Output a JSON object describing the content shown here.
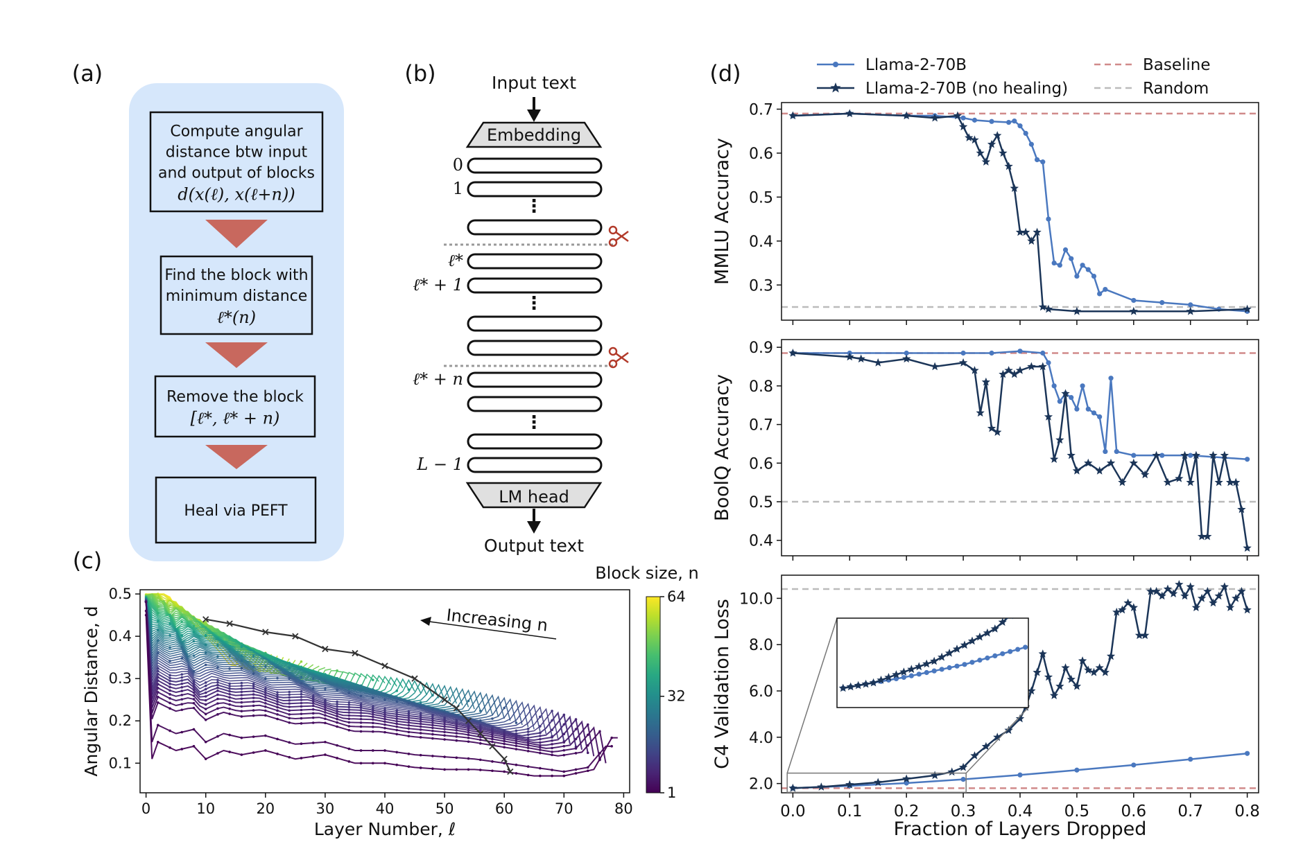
{
  "panels": {
    "a": {
      "label": "(a)",
      "steps": [
        {
          "lines": [
            "Compute angular",
            "distance btw input",
            "and output of blocks"
          ],
          "math": "d(x(ℓ), x(ℓ+n))"
        },
        {
          "lines": [
            "Find the block with",
            "minimum distance"
          ],
          "math": "ℓ*(n)"
        },
        {
          "lines": [
            "Remove the block"
          ],
          "math": "[ℓ*, ℓ* + n)"
        },
        {
          "lines": [
            "Heal via PEFT"
          ],
          "math": ""
        }
      ],
      "colors": {
        "panel": "#d6e7fb",
        "arrow": "#c8685e"
      }
    },
    "b": {
      "label": "(b)",
      "input": "Input text",
      "output": "Output text",
      "embedding": "Embedding",
      "head": "LM head",
      "layer_labels": [
        "0",
        "1",
        "ℓ*",
        "ℓ* + 1",
        "ℓ* + n",
        "L − 1"
      ],
      "ellipsis": "⋮",
      "scissors_icon": "scissors-icon",
      "colors": {
        "scissors": "#b23a2a",
        "cut": "#999999"
      }
    },
    "c": {
      "label": "(c)"
    },
    "d": {
      "label": "(d)"
    }
  },
  "chart_data": [
    {
      "id": "angular-distance",
      "type": "line",
      "xlabel": "Layer Number, ℓ",
      "ylabel": "Angular Distance, d",
      "xlim": [
        -1,
        81
      ],
      "ylim": [
        0.03,
        0.51
      ],
      "xticks": [
        0,
        10,
        20,
        30,
        40,
        50,
        60,
        70,
        80
      ],
      "yticks": [
        0.1,
        0.2,
        0.3,
        0.4,
        0.5
      ],
      "grid": false,
      "annotation": "Increasing n",
      "colorbar": {
        "label": "Block size, n",
        "min": 1,
        "max": 64,
        "ticks": [
          1,
          32,
          64
        ],
        "colormap": "viridis"
      },
      "n_layers": 80,
      "series": [
        {
          "n": 1,
          "x": [
            0,
            1,
            2,
            5,
            8,
            10,
            13,
            16,
            20,
            25,
            30,
            35,
            40,
            45,
            50,
            55,
            60,
            65,
            70,
            75,
            78
          ],
          "y": [
            0.45,
            0.11,
            0.15,
            0.13,
            0.14,
            0.11,
            0.13,
            0.12,
            0.13,
            0.11,
            0.12,
            0.1,
            0.1,
            0.09,
            0.085,
            0.085,
            0.08,
            0.07,
            0.07,
            0.085,
            0.16
          ]
        },
        {
          "n": 2,
          "x": [
            0,
            1,
            2,
            5,
            8,
            10,
            13,
            16,
            20,
            25,
            30,
            35,
            40,
            45,
            50,
            55,
            60,
            65,
            70,
            74,
            77
          ],
          "y": [
            0.46,
            0.15,
            0.19,
            0.17,
            0.18,
            0.15,
            0.17,
            0.16,
            0.165,
            0.145,
            0.15,
            0.13,
            0.13,
            0.12,
            0.115,
            0.11,
            0.1,
            0.09,
            0.08,
            0.09,
            0.14
          ]
        }
      ],
      "series_rule": "n = 1 to 64; each curve starts at layer 0 and ends at layer 80 − n",
      "min_path": {
        "x": [
          10,
          14,
          20,
          25,
          30,
          35,
          40,
          45,
          50,
          52,
          54,
          56,
          58,
          60,
          61
        ],
        "y": [
          0.44,
          0.43,
          0.41,
          0.4,
          0.37,
          0.36,
          0.33,
          0.3,
          0.25,
          0.23,
          0.2,
          0.17,
          0.14,
          0.11,
          0.08
        ]
      }
    },
    {
      "id": "mmlu",
      "type": "line",
      "ylabel": "MMLU Accuracy",
      "xlim": [
        -0.02,
        0.82
      ],
      "ylim": [
        0.22,
        0.715
      ],
      "xticks": [
        0.0,
        0.1,
        0.2,
        0.3,
        0.4,
        0.5,
        0.6,
        0.7,
        0.8
      ],
      "yticks": [
        "0.3",
        "0.4",
        "0.5",
        "0.6",
        "0.7"
      ],
      "ytick_values": [
        0.3,
        0.4,
        0.5,
        0.6,
        0.7
      ],
      "baseline": 0.69,
      "random": 0.25,
      "series": [
        {
          "name": "Llama-2-70B",
          "x": [
            0.0,
            0.1,
            0.2,
            0.25,
            0.3,
            0.32,
            0.35,
            0.38,
            0.39,
            0.4,
            0.41,
            0.42,
            0.43,
            0.44,
            0.45,
            0.46,
            0.47,
            0.48,
            0.49,
            0.5,
            0.51,
            0.52,
            0.53,
            0.54,
            0.55,
            0.6,
            0.65,
            0.7,
            0.75,
            0.8
          ],
          "y": [
            0.685,
            0.69,
            0.685,
            0.685,
            0.68,
            0.675,
            0.672,
            0.67,
            0.673,
            0.662,
            0.645,
            0.62,
            0.585,
            0.58,
            0.45,
            0.35,
            0.345,
            0.38,
            0.36,
            0.32,
            0.345,
            0.335,
            0.32,
            0.28,
            0.29,
            0.265,
            0.26,
            0.255,
            0.245,
            0.24
          ]
        },
        {
          "name": "Llama-2-70B (no healing)",
          "x": [
            0.0,
            0.1,
            0.2,
            0.25,
            0.29,
            0.3,
            0.31,
            0.32,
            0.33,
            0.34,
            0.35,
            0.36,
            0.37,
            0.38,
            0.39,
            0.4,
            0.41,
            0.42,
            0.43,
            0.44,
            0.45,
            0.5,
            0.6,
            0.7,
            0.8
          ],
          "y": [
            0.685,
            0.69,
            0.685,
            0.68,
            0.685,
            0.66,
            0.635,
            0.63,
            0.6,
            0.58,
            0.62,
            0.64,
            0.6,
            0.57,
            0.52,
            0.42,
            0.42,
            0.4,
            0.42,
            0.25,
            0.245,
            0.24,
            0.24,
            0.24,
            0.245
          ]
        }
      ]
    },
    {
      "id": "boolq",
      "type": "line",
      "ylabel": "BoolQ Accuracy",
      "xlim": [
        -0.02,
        0.82
      ],
      "ylim": [
        0.36,
        0.92
      ],
      "xticks": [
        0.0,
        0.1,
        0.2,
        0.3,
        0.4,
        0.5,
        0.6,
        0.7,
        0.8
      ],
      "yticks": [
        "0.4",
        "0.5",
        "0.6",
        "0.7",
        "0.8",
        "0.9"
      ],
      "ytick_values": [
        0.4,
        0.5,
        0.6,
        0.7,
        0.8,
        0.9
      ],
      "baseline": 0.885,
      "random": 0.5,
      "series": [
        {
          "name": "Llama-2-70B",
          "x": [
            0.0,
            0.1,
            0.2,
            0.3,
            0.35,
            0.4,
            0.44,
            0.45,
            0.46,
            0.47,
            0.48,
            0.49,
            0.5,
            0.51,
            0.52,
            0.53,
            0.54,
            0.55,
            0.56,
            0.57,
            0.6,
            0.65,
            0.7,
            0.8
          ],
          "y": [
            0.885,
            0.885,
            0.885,
            0.885,
            0.885,
            0.89,
            0.885,
            0.86,
            0.8,
            0.76,
            0.78,
            0.77,
            0.74,
            0.8,
            0.74,
            0.73,
            0.72,
            0.63,
            0.82,
            0.63,
            0.62,
            0.62,
            0.62,
            0.61
          ]
        },
        {
          "name": "Llama-2-70B (no healing)",
          "x": [
            0.0,
            0.1,
            0.12,
            0.15,
            0.2,
            0.25,
            0.3,
            0.32,
            0.33,
            0.34,
            0.35,
            0.36,
            0.37,
            0.38,
            0.39,
            0.4,
            0.42,
            0.44,
            0.45,
            0.46,
            0.47,
            0.48,
            0.49,
            0.5,
            0.52,
            0.54,
            0.56,
            0.58,
            0.6,
            0.62,
            0.64,
            0.66,
            0.68,
            0.69,
            0.7,
            0.71,
            0.72,
            0.73,
            0.74,
            0.75,
            0.76,
            0.77,
            0.78,
            0.79,
            0.8
          ],
          "y": [
            0.885,
            0.875,
            0.87,
            0.86,
            0.87,
            0.85,
            0.86,
            0.84,
            0.73,
            0.81,
            0.69,
            0.68,
            0.83,
            0.84,
            0.83,
            0.84,
            0.85,
            0.85,
            0.72,
            0.61,
            0.66,
            0.78,
            0.62,
            0.58,
            0.6,
            0.58,
            0.6,
            0.55,
            0.6,
            0.57,
            0.62,
            0.55,
            0.56,
            0.62,
            0.55,
            0.62,
            0.41,
            0.41,
            0.62,
            0.55,
            0.62,
            0.55,
            0.55,
            0.48,
            0.38
          ]
        }
      ]
    },
    {
      "id": "c4-loss",
      "type": "line",
      "ylabel": "C4 Validation Loss",
      "xlabel": "Fraction of Layers Dropped",
      "xlim": [
        -0.02,
        0.82
      ],
      "ylim": [
        1.6,
        11.0
      ],
      "xticks": [
        "0.0",
        "0.1",
        "0.2",
        "0.3",
        "0.4",
        "0.5",
        "0.6",
        "0.7",
        "0.8"
      ],
      "xtick_values": [
        0.0,
        0.1,
        0.2,
        0.3,
        0.4,
        0.5,
        0.6,
        0.7,
        0.8
      ],
      "yticks": [
        "2.0",
        "4.0",
        "6.0",
        "8.0",
        "10.0"
      ],
      "ytick_values": [
        2.0,
        4.0,
        6.0,
        8.0,
        10.0
      ],
      "baseline": 1.8,
      "random": 10.4,
      "inset": true,
      "series": [
        {
          "name": "Llama-2-70B",
          "x": [
            0.0,
            0.1,
            0.2,
            0.3,
            0.4,
            0.5,
            0.6,
            0.7,
            0.8
          ],
          "y": [
            1.8,
            1.9,
            2.02,
            2.18,
            2.37,
            2.58,
            2.8,
            3.05,
            3.3
          ]
        },
        {
          "name": "Llama-2-70B (no healing)",
          "x": [
            0.0,
            0.05,
            0.1,
            0.15,
            0.2,
            0.25,
            0.28,
            0.3,
            0.32,
            0.34,
            0.36,
            0.38,
            0.4,
            0.41,
            0.42,
            0.43,
            0.44,
            0.45,
            0.46,
            0.47,
            0.48,
            0.49,
            0.5,
            0.51,
            0.52,
            0.53,
            0.54,
            0.55,
            0.56,
            0.57,
            0.58,
            0.59,
            0.6,
            0.61,
            0.62,
            0.63,
            0.64,
            0.65,
            0.66,
            0.67,
            0.68,
            0.69,
            0.7,
            0.71,
            0.72,
            0.73,
            0.74,
            0.75,
            0.76,
            0.77,
            0.78,
            0.79,
            0.8
          ],
          "y": [
            1.8,
            1.85,
            1.95,
            2.05,
            2.2,
            2.35,
            2.5,
            2.7,
            3.2,
            3.6,
            4.0,
            4.3,
            4.8,
            5.3,
            6.0,
            6.8,
            7.6,
            6.6,
            5.8,
            6.2,
            7.0,
            6.5,
            6.2,
            7.3,
            6.9,
            6.8,
            7.0,
            6.8,
            7.5,
            9.4,
            9.5,
            9.8,
            9.6,
            8.4,
            8.4,
            10.3,
            10.3,
            10.1,
            10.4,
            10.2,
            10.6,
            10.1,
            10.5,
            9.6,
            10.0,
            10.3,
            9.8,
            10.1,
            10.5,
            9.6,
            10.0,
            10.3,
            9.5
          ]
        }
      ],
      "legend": {
        "position": "top",
        "entries": [
          "Llama-2-70B",
          "Llama-2-70B (no healing)",
          "Baseline",
          "Random"
        ]
      }
    }
  ],
  "colors": {
    "healed": "#4a78bf",
    "noheal": "#1b3558",
    "baseline": "#d08a8a",
    "random": "#bbbbbb"
  }
}
